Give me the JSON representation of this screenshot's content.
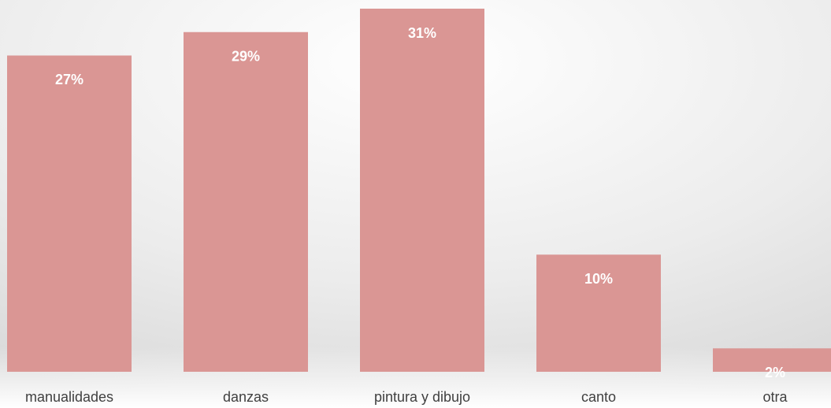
{
  "chart_data": {
    "type": "bar",
    "categories": [
      "manualidades",
      "danzas",
      "pintura y dibujo",
      "canto",
      "otra"
    ],
    "values": [
      27,
      29,
      31,
      10,
      2
    ],
    "value_labels": [
      "27%",
      "29%",
      "31%",
      "10%",
      "2%"
    ],
    "color": "#da9694",
    "ylim": [
      0,
      31
    ]
  }
}
